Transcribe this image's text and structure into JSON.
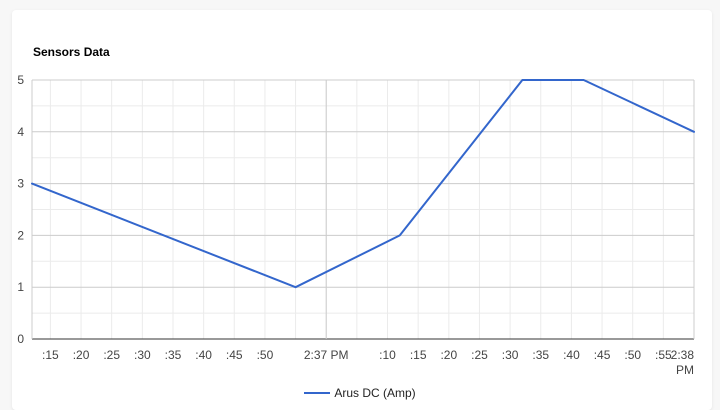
{
  "chart_data": {
    "type": "line",
    "title": "Sensors Data",
    "xlabel": "",
    "ylabel": "",
    "ylim": [
      0,
      5
    ],
    "y_ticks": [
      0,
      1,
      2,
      3,
      4,
      5
    ],
    "x_range": [
      "2:36:12 PM",
      "2:38:00 PM"
    ],
    "x_tick_labels": [
      {
        "t": "2:36:15 PM",
        "label": ":15"
      },
      {
        "t": "2:36:20 PM",
        "label": ":20"
      },
      {
        "t": "2:36:25 PM",
        "label": ":25"
      },
      {
        "t": "2:36:30 PM",
        "label": ":30"
      },
      {
        "t": "2:36:35 PM",
        "label": ":35"
      },
      {
        "t": "2:36:40 PM",
        "label": ":40"
      },
      {
        "t": "2:36:45 PM",
        "label": ":45"
      },
      {
        "t": "2:36:50 PM",
        "label": ":50"
      },
      {
        "t": "2:37:00 PM",
        "label": "2:37 PM"
      },
      {
        "t": "2:37:10 PM",
        "label": ":10"
      },
      {
        "t": "2:37:15 PM",
        "label": ":15"
      },
      {
        "t": "2:37:20 PM",
        "label": ":20"
      },
      {
        "t": "2:37:25 PM",
        "label": ":25"
      },
      {
        "t": "2:37:30 PM",
        "label": ":30"
      },
      {
        "t": "2:37:35 PM",
        "label": ":35"
      },
      {
        "t": "2:37:40 PM",
        "label": ":40"
      },
      {
        "t": "2:37:45 PM",
        "label": ":45"
      },
      {
        "t": "2:37:50 PM",
        "label": ":50"
      },
      {
        "t": "2:37:55 PM",
        "label": ":55"
      },
      {
        "t": "2:38:00 PM",
        "label": "2:38 PM"
      }
    ],
    "series": [
      {
        "name": "Arus DC (Amp)",
        "color": "#3366cc",
        "points": [
          {
            "x": "2:36:12 PM",
            "y": 3
          },
          {
            "x": "2:36:55 PM",
            "y": 1
          },
          {
            "x": "2:37:12 PM",
            "y": 2
          },
          {
            "x": "2:37:32 PM",
            "y": 5
          },
          {
            "x": "2:37:42 PM",
            "y": 5
          },
          {
            "x": "2:38:00 PM",
            "y": 4
          }
        ]
      }
    ],
    "grid": true,
    "legend_position": "bottom"
  }
}
